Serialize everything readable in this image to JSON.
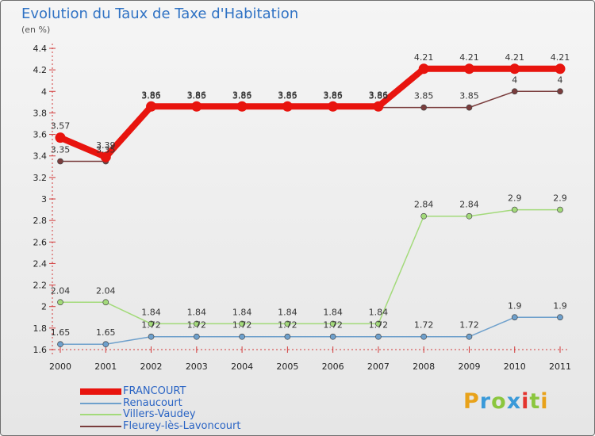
{
  "title": "Evolution du Taux de Taxe d'Habitation",
  "subtitle": "(en %)",
  "logo": {
    "text": "Proxiti",
    "colors": [
      "#e8a21a",
      "#3a9ad9",
      "#8bc63e",
      "#3a9ad9",
      "#e4342e",
      "#8bc63e",
      "#e8a21a"
    ]
  },
  "chart_data": {
    "type": "line",
    "categories": [
      "2000",
      "2001",
      "2002",
      "2003",
      "2004",
      "2005",
      "2006",
      "2007",
      "2008",
      "2009",
      "2010",
      "2011"
    ],
    "ylim": [
      1.6,
      4.4
    ],
    "yticks": [
      "1.6",
      "1.8",
      "2",
      "2.2",
      "2.4",
      "2.6",
      "2.8",
      "3",
      "3.2",
      "3.4",
      "3.6",
      "3.8",
      "4",
      "4.2",
      "4.4"
    ],
    "grid": false,
    "legend_position": "bottom-left",
    "series": [
      {
        "name": "FRANCOURT",
        "color": "#e8140e",
        "values": [
          3.57,
          3.39,
          3.86,
          3.86,
          3.86,
          3.86,
          3.86,
          3.86,
          4.21,
          4.21,
          4.21,
          4.21
        ],
        "labels": [
          "3.57",
          "3.39",
          "3.86",
          "3.86",
          "3.86",
          "3.86",
          "3.86",
          "3.86",
          "4.21",
          "4.21",
          "4.21",
          "4.21"
        ]
      },
      {
        "name": "Renaucourt",
        "color": "#6ea0cc",
        "values": [
          1.65,
          1.65,
          1.72,
          1.72,
          1.72,
          1.72,
          1.72,
          1.72,
          1.72,
          1.72,
          1.9,
          1.9
        ],
        "labels": [
          "1.65",
          "1.65",
          "1.72",
          "1.72",
          "1.72",
          "1.72",
          "1.72",
          "1.72",
          "1.72",
          "1.72",
          "1.9",
          "1.9"
        ]
      },
      {
        "name": "Villers-Vaudey",
        "color": "#a3da7a",
        "values": [
          2.04,
          2.04,
          1.84,
          1.84,
          1.84,
          1.84,
          1.84,
          1.84,
          2.84,
          2.84,
          2.9,
          2.9
        ],
        "labels": [
          "2.04",
          "2.04",
          "1.84",
          "1.84",
          "1.84",
          "1.84",
          "1.84",
          "1.84",
          "2.84",
          "2.84",
          "2.9",
          "2.9"
        ]
      },
      {
        "name": "Fleurey-lès-Lavoncourt",
        "color": "#7a3d3d",
        "values": [
          3.35,
          3.35,
          3.85,
          3.85,
          3.85,
          3.85,
          3.85,
          3.85,
          3.85,
          3.85,
          4,
          4
        ],
        "labels": [
          "3.35",
          "3.35",
          "3.85",
          "3.85",
          "3.85",
          "3.85",
          "3.85",
          "3.85",
          "3.85",
          "3.85",
          "4",
          "4"
        ]
      }
    ]
  }
}
